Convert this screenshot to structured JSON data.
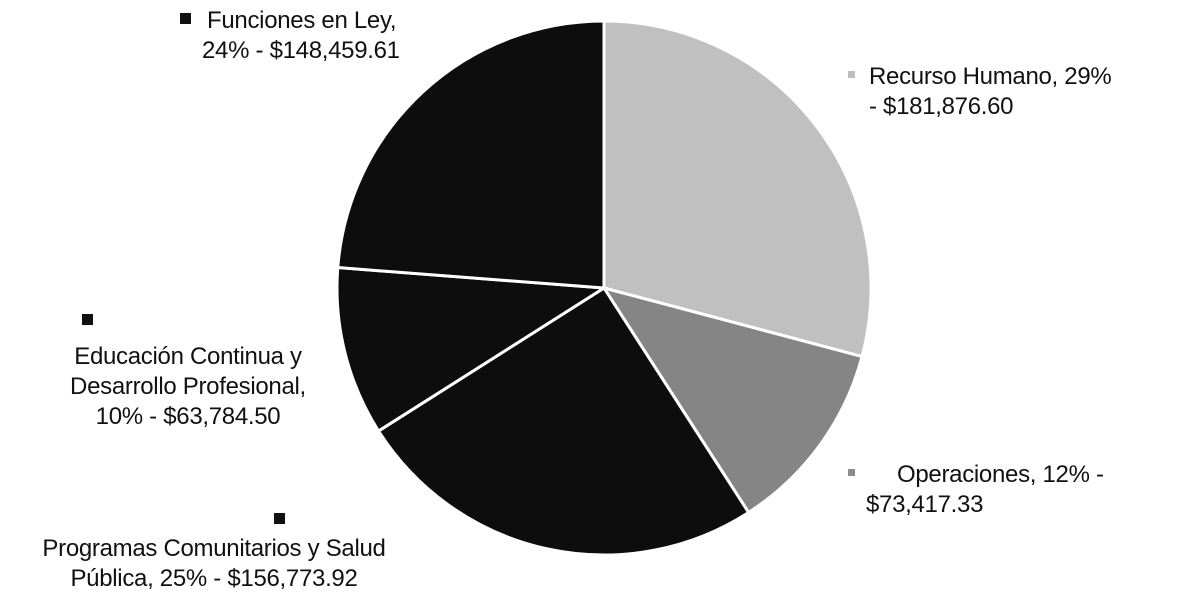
{
  "chart_data": {
    "type": "pie",
    "slices": [
      {
        "label": "Recurso Humano",
        "percent_text": "29%",
        "amount": "$181,876.60",
        "value": 181876.6,
        "color": "#c0c0c0",
        "marker_color": "#bdbdbd"
      },
      {
        "label": "Operaciones",
        "percent_text": "12%",
        "amount": "$73,417.33",
        "value": 73417.33,
        "color": "#858585",
        "marker_color": "#8c8c8c"
      },
      {
        "label": "Programas Comunitarios y Salud Pública",
        "percent_text": "25%",
        "amount": "$156,773.92",
        "value": 156773.92,
        "color": "#0d0d0d",
        "marker_color": "#111111"
      },
      {
        "label": "Educación Continua y Desarrollo Profesional",
        "percent_text": "10%",
        "amount": "$63,784.50",
        "value": 63784.5,
        "color": "#0d0d0d",
        "marker_color": "#111111"
      },
      {
        "label": "Funciones en Ley",
        "percent_text": "24%",
        "amount": "$148,459.61",
        "value": 148459.61,
        "color": "#0d0d0d",
        "marker_color": "#111111"
      }
    ],
    "start_angle_deg": 0,
    "direction": "clockwise",
    "slice_separator_color": "#ffffff"
  },
  "labels": {
    "recurso": {
      "line1": "Recurso Humano, 29%",
      "line2": "- $181,876.60"
    },
    "operaciones": {
      "line1": "Operaciones, 12% -",
      "line2": "$73,417.33"
    },
    "programas": {
      "line1": "Programas Comunitarios y Salud",
      "line2": "Pública, 25% - $156,773.92"
    },
    "educacion": {
      "line1": "Educación Continua y",
      "line2": "Desarrollo Profesional,",
      "line3": "10% - $63,784.50"
    },
    "funciones": {
      "line1": "Funciones en Ley,",
      "line2": "24% - $148,459.61"
    }
  }
}
